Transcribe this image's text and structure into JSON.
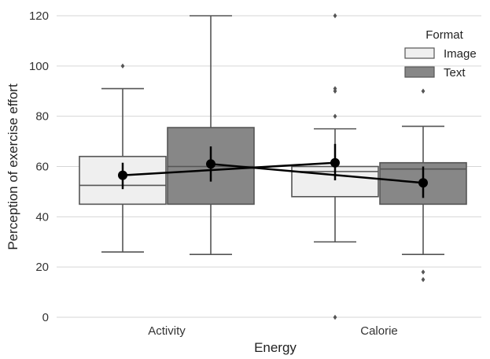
{
  "chart_data": {
    "type": "box",
    "xlabel": "Energy",
    "ylabel": "Perception of exercise effort",
    "ylim": [
      0,
      120
    ],
    "yticks": [
      0,
      20,
      40,
      60,
      80,
      100,
      120
    ],
    "grid": "horizontal",
    "categories": [
      "Activity",
      "Calorie"
    ],
    "legend": {
      "title": "Format",
      "position": "top-right"
    },
    "series": [
      {
        "name": "Image",
        "color": "#efefef",
        "boxes": [
          {
            "whisker_low": 26,
            "q1": 45,
            "median": 52.5,
            "q3": 64,
            "whisker_high": 91,
            "outliers": [
              100
            ]
          },
          {
            "whisker_low": 30,
            "q1": 48,
            "median": 58,
            "q3": 60,
            "whisker_high": 75,
            "outliers": [
              0,
              80,
              90,
              91,
              120
            ]
          }
        ],
        "means": [
          56.5,
          61.5
        ],
        "ci": [
          [
            51,
            61.5
          ],
          [
            54.5,
            69
          ]
        ]
      },
      {
        "name": "Text",
        "color": "#878787",
        "boxes": [
          {
            "whisker_low": 25,
            "q1": 45,
            "median": 60,
            "q3": 75.5,
            "whisker_high": 120,
            "outliers": []
          },
          {
            "whisker_low": 25,
            "q1": 45,
            "median": 59,
            "q3": 61.5,
            "whisker_high": 76,
            "outliers": [
              15,
              18,
              90
            ]
          }
        ],
        "means": [
          61,
          53.5
        ],
        "ci": [
          [
            54,
            68
          ],
          [
            47.5,
            60
          ]
        ]
      }
    ]
  }
}
